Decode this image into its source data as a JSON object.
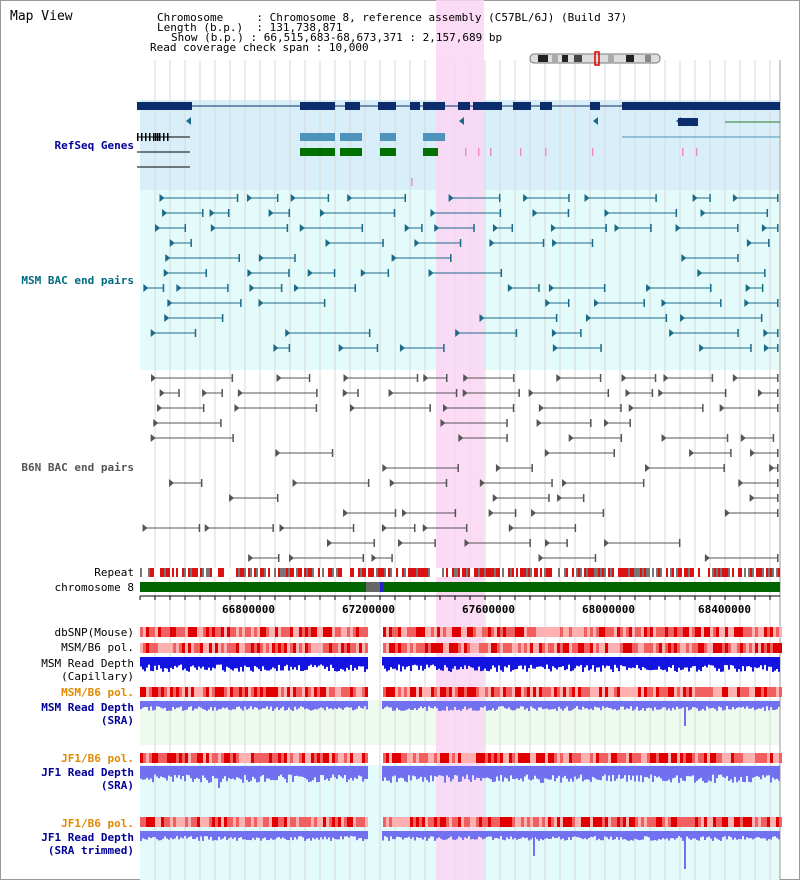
{
  "view": {
    "title": "Map View",
    "info": {
      "chromosome_key": "Chromosome",
      "chromosome_val": "Chromosome 8, reference assembly (C57BL/6J) (Build 37)",
      "length_key": "Length (b.p.)",
      "length_val": "131,738,871",
      "show_key": "Show (b.p.)",
      "show_val": "66,515,683-68,673,371 : 2,157,689 bp",
      "coverage_key": "Read coverage check span",
      "coverage_val": "10,000"
    }
  },
  "colors": {
    "refseq_bg": "#d8effa",
    "bac_bg": "#e4fbfb",
    "highlight": "#fbd5f3",
    "gene_navy": "#0b2d6b",
    "gene_steel": "#4d93bb",
    "gene_green": "#007000",
    "msm_bac": "#1a6a88",
    "b6n_bac": "#555555",
    "chrom_green": "#006400",
    "snp_red": "#e00000",
    "depth_blue": "#1414e0",
    "sra_blue": "#7070f0",
    "label_blue": "#000099",
    "label_teal": "#006b80",
    "label_orange": "#e08a00"
  },
  "tracks": {
    "refseq": "RefSeq Genes",
    "msm_bac": "MSM BAC end pairs",
    "b6n_bac": "B6N BAC end pairs",
    "repeat": "Repeat",
    "chromosome": "chromosome 8",
    "dbsnp": "dbSNP(Mouse)",
    "msm_b6_pol": "MSM/B6 pol.",
    "msm_depth_cap_1": "MSM Read Depth",
    "msm_depth_cap_2": "(Capillary)",
    "msm_b6_pol_sra": "MSM/B6 pol.",
    "msm_depth_sra_1": "MSM Read Depth",
    "msm_depth_sra_2": "(SRA)",
    "jf1_b6_pol": "JF1/B6 pol.",
    "jf1_depth_sra_1": "JF1 Read Depth",
    "jf1_depth_sra_2": "(SRA)",
    "jf1_b6_pol_trim": "JF1/B6 pol.",
    "jf1_depth_trim_1": "JF1 Read Depth",
    "jf1_depth_trim_2": "(SRA trimmed)"
  },
  "axis": {
    "ticks": [
      "66800000",
      "67200000",
      "67600000",
      "68000000",
      "68400000"
    ]
  }
}
